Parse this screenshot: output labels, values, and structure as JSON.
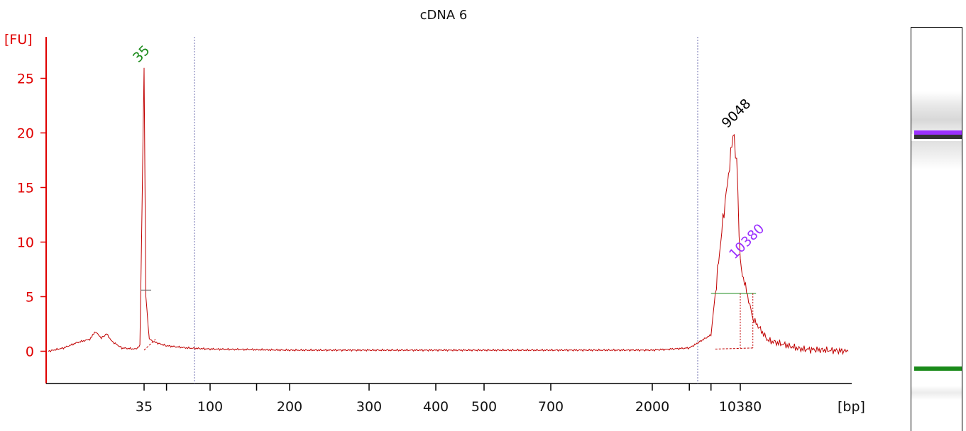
{
  "chart_data": {
    "type": "line",
    "title": "cDNA 6",
    "ylabel": "[FU]",
    "xlabel": "[bp]",
    "ylim": [
      -3,
      28
    ],
    "yticks": [
      0,
      5,
      10,
      15,
      20,
      25
    ],
    "xtick_labels": [
      "35",
      "100",
      "200",
      "300",
      "400",
      "500",
      "700",
      "2000",
      "10380"
    ],
    "series": [
      {
        "color": "#c00000",
        "points": [
          {
            "x": 18,
            "y": 0.0
          },
          {
            "x": 20,
            "y": 0.3
          },
          {
            "x": 22,
            "y": 0.8
          },
          {
            "x": 24,
            "y": 1.1
          },
          {
            "x": 25,
            "y": 1.8
          },
          {
            "x": 26,
            "y": 1.2
          },
          {
            "x": 27,
            "y": 1.6
          },
          {
            "x": 28,
            "y": 0.9
          },
          {
            "x": 30,
            "y": 0.3
          },
          {
            "x": 33,
            "y": 0.2
          },
          {
            "x": 34,
            "y": 0.5
          },
          {
            "x": 35,
            "y": 26.0
          },
          {
            "x": 36,
            "y": 5.0
          },
          {
            "x": 38,
            "y": 1.1
          },
          {
            "x": 42,
            "y": 0.8
          },
          {
            "x": 50,
            "y": 0.5
          },
          {
            "x": 70,
            "y": 0.3
          },
          {
            "x": 100,
            "y": 0.2
          },
          {
            "x": 200,
            "y": 0.1
          },
          {
            "x": 400,
            "y": 0.1
          },
          {
            "x": 700,
            "y": 0.1
          },
          {
            "x": 2000,
            "y": 0.1
          },
          {
            "x": 4000,
            "y": 0.3
          },
          {
            "x": 6000,
            "y": 1.5
          },
          {
            "x": 7500,
            "y": 12.0
          },
          {
            "x": 8500,
            "y": 17.0
          },
          {
            "x": 9048,
            "y": 20.0
          },
          {
            "x": 9700,
            "y": 17.5
          },
          {
            "x": 10380,
            "y": 8.0
          },
          {
            "x": 11500,
            "y": 3.0
          },
          {
            "x": 13000,
            "y": 1.0
          },
          {
            "x": 17000,
            "y": 0.2
          },
          {
            "x": 25000,
            "y": 0.0
          }
        ]
      }
    ],
    "peaks": [
      {
        "label": "35",
        "x": 35,
        "y": 26.0,
        "color": "#1a8a1a"
      },
      {
        "label": "9048",
        "x": 9048,
        "y": 20.0,
        "color": "#000000"
      },
      {
        "label": "10380",
        "x": 10380,
        "y": 8.0,
        "color": "#9b30ff"
      }
    ],
    "ladder_bands": {
      "upper_marker_color": "#9b30ff",
      "lower_marker_color": "#1a8a1a"
    }
  }
}
